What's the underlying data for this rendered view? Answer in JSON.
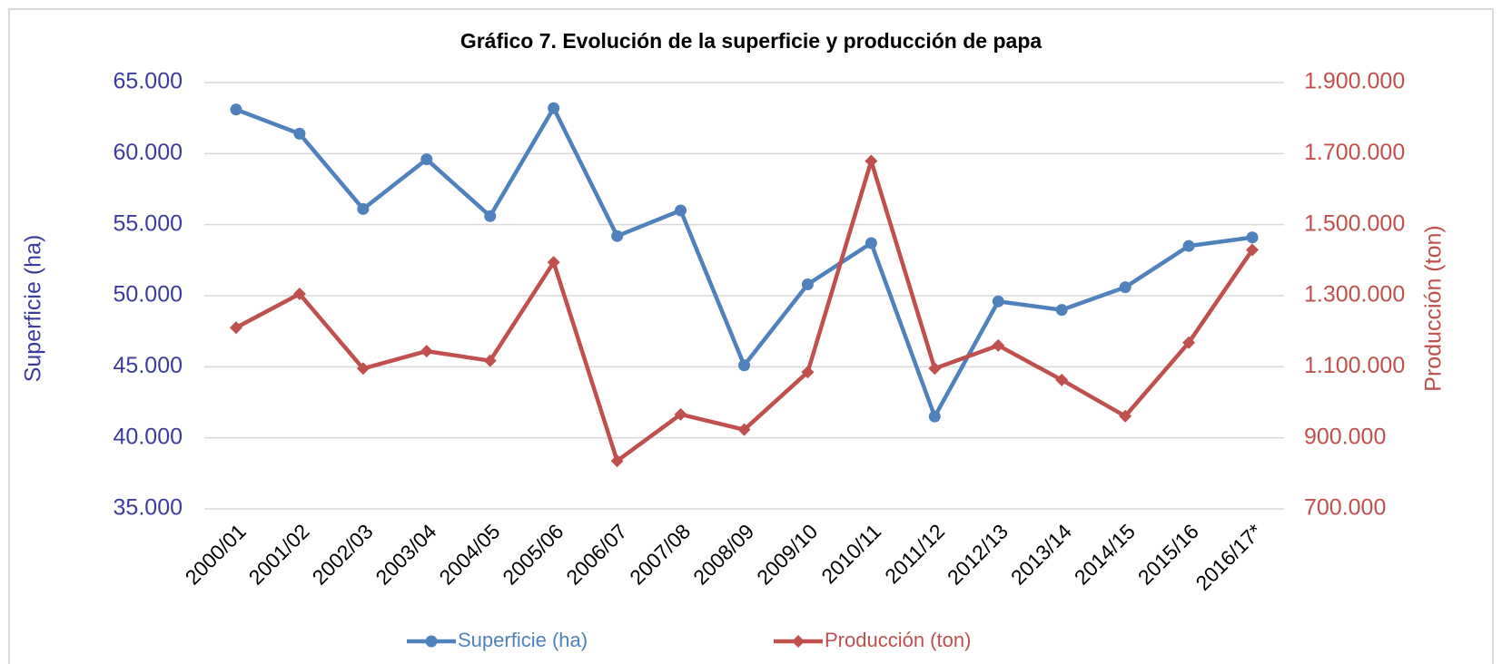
{
  "chart_data": {
    "type": "line",
    "title": "Gráfico 7. Evolución de la superficie y producción de papa",
    "y_label": "Superficie (ha)",
    "y2_label": "Producción (ton)",
    "categories": [
      "2000/01",
      "2001/02",
      "2002/03",
      "2003/04",
      "2004/05",
      "2005/06",
      "2006/07",
      "2007/08",
      "2008/09",
      "2009/10",
      "2010/11",
      "2011/12",
      "2012/13",
      "2013/14",
      "2014/15",
      "2015/16",
      "2016/17*"
    ],
    "series": [
      {
        "name": "Superficie (ha)",
        "color": "#4f81bd",
        "marker": "circle",
        "axis": "y",
        "values": [
          63100,
          61400,
          56100,
          59600,
          55600,
          63200,
          54200,
          56000,
          45100,
          50800,
          53700,
          41500,
          49600,
          49000,
          50600,
          53500,
          54100
        ]
      },
      {
        "name": "Producción (ton)",
        "color": "#c0504d",
        "marker": "diamond",
        "axis": "y2",
        "values": [
          1210000,
          1305000,
          1095000,
          1144000,
          1117000,
          1394000,
          835000,
          966000,
          923000,
          1085000,
          1679000,
          1095000,
          1160000,
          1063000,
          961000,
          1168000,
          1429000
        ]
      }
    ],
    "ylim": [
      35000,
      65000
    ],
    "yticks": [
      {
        "value": 35000,
        "label": "35.000"
      },
      {
        "value": 40000,
        "label": "40.000"
      },
      {
        "value": 45000,
        "label": "45.000"
      },
      {
        "value": 50000,
        "label": "50.000"
      },
      {
        "value": 55000,
        "label": "55.000"
      },
      {
        "value": 60000,
        "label": "60.000"
      },
      {
        "value": 65000,
        "label": "65.000"
      }
    ],
    "y2lim": [
      700000,
      1900000
    ],
    "y2ticks": [
      {
        "value": 700000,
        "label": "700.000"
      },
      {
        "value": 900000,
        "label": "900.000"
      },
      {
        "value": 1100000,
        "label": "1.100.000"
      },
      {
        "value": 1300000,
        "label": "1.300.000"
      },
      {
        "value": 1500000,
        "label": "1.500.000"
      },
      {
        "value": 1700000,
        "label": "1.700.000"
      },
      {
        "value": 1900000,
        "label": "1.900.000"
      }
    ],
    "grid": true,
    "legend": "bottom"
  }
}
